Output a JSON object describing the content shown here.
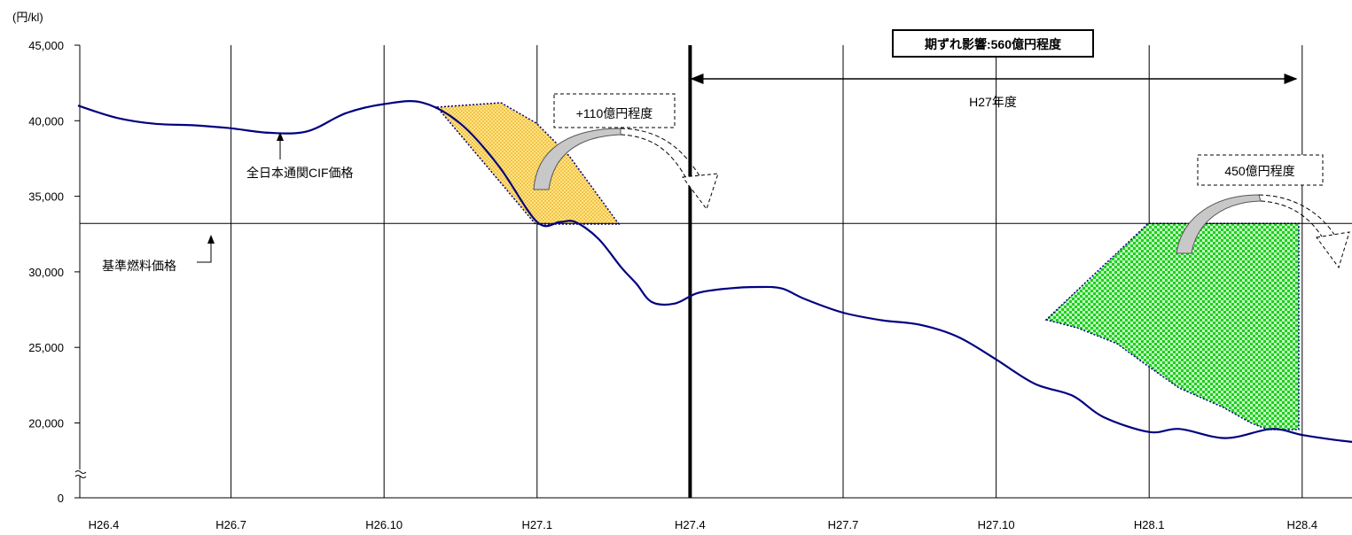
{
  "chart_data": {
    "type": "line",
    "unit_label": "(円/kl)",
    "y_ticks": [
      0,
      20000,
      25000,
      30000,
      35000,
      40000,
      45000
    ],
    "y_tick_labels": [
      "0",
      "20,000",
      "25,000",
      "30,000",
      "35,000",
      "40,000",
      "45,000"
    ],
    "ylim_upper": [
      17000,
      45000
    ],
    "y_axis_break": true,
    "x_tick_labels": [
      "H26.4",
      "H26.7",
      "H26.10",
      "H27.1",
      "H27.4",
      "H27.7",
      "H27.10",
      "H28.1",
      "H28.4"
    ],
    "grid": "vertical",
    "series": [
      {
        "name": "全日本通関CIF価格",
        "color": "#000080",
        "x": [
          0,
          0.25,
          0.5,
          0.75,
          1,
          1.25,
          1.5,
          1.75,
          2,
          2.25,
          2.5,
          2.75,
          3,
          3.15,
          3.25,
          3.4,
          3.55,
          3.65,
          3.75,
          3.9,
          4.05,
          4.25,
          4.45,
          4.6,
          4.75,
          5,
          5.25,
          5.5,
          5.75,
          6,
          6.25,
          6.5,
          6.7,
          7,
          7.2,
          7.5,
          7.8,
          8,
          8.2,
          8.45,
          8.6
        ],
        "y": [
          41000,
          40200,
          39800,
          39700,
          39500,
          39200,
          39300,
          40500,
          41100,
          41200,
          39800,
          37000,
          33300,
          33300,
          33300,
          32200,
          30300,
          29200,
          28000,
          27900,
          28600,
          28900,
          29000,
          28900,
          28200,
          27300,
          26800,
          26500,
          25700,
          24200,
          22600,
          21800,
          20400,
          19400,
          19600,
          19000,
          19600,
          19200,
          18900,
          18600,
          18400
        ]
      },
      {
        "name": "基準燃料価格",
        "color": "#000000",
        "values": [
          33200
        ]
      }
    ],
    "annotations": [
      {
        "text": "期ずれ影響:560億円程度"
      },
      {
        "text": "H27年度"
      },
      {
        "text": "+110億円程度",
        "color": "#FFD966"
      },
      {
        "text": "450億円程度",
        "color": "#33DD33"
      }
    ],
    "base_price": 33200
  }
}
